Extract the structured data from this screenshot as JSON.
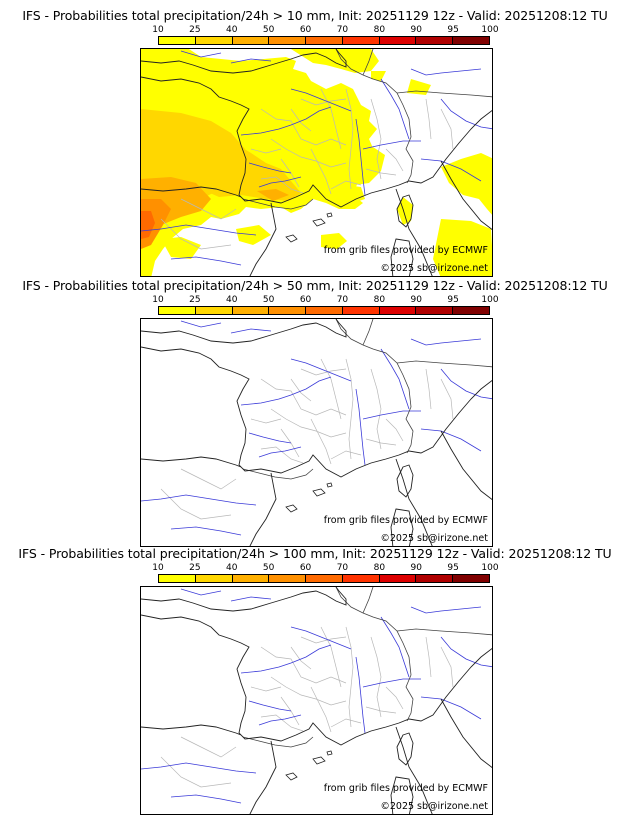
{
  "panels": [
    {
      "title": "IFS - Probabilities total precipitation/24h > 10 mm, Init: 20251129 12z - Valid: 20251208:12 TU",
      "has_field": true
    },
    {
      "title": "IFS - Probabilities total precipitation/24h > 50 mm, Init: 20251129 12z - Valid: 20251208:12 TU",
      "has_field": false
    },
    {
      "title": "IFS - Probabilities total precipitation/24h > 100 mm, Init: 20251129 12z - Valid: 20251208:12 TU",
      "has_field": false
    }
  ],
  "scale": {
    "ticks": [
      "10",
      "25",
      "40",
      "50",
      "60",
      "70",
      "80",
      "90",
      "95",
      "100"
    ],
    "colors": [
      "#ffff00",
      "#ffd700",
      "#ffb000",
      "#ff9000",
      "#ff6a00",
      "#ff3300",
      "#dd0000",
      "#b00000",
      "#800000"
    ]
  },
  "credits": {
    "source": "from grib files provided by ECMWF",
    "copyright": "©2025 sb@irizone.net"
  }
}
